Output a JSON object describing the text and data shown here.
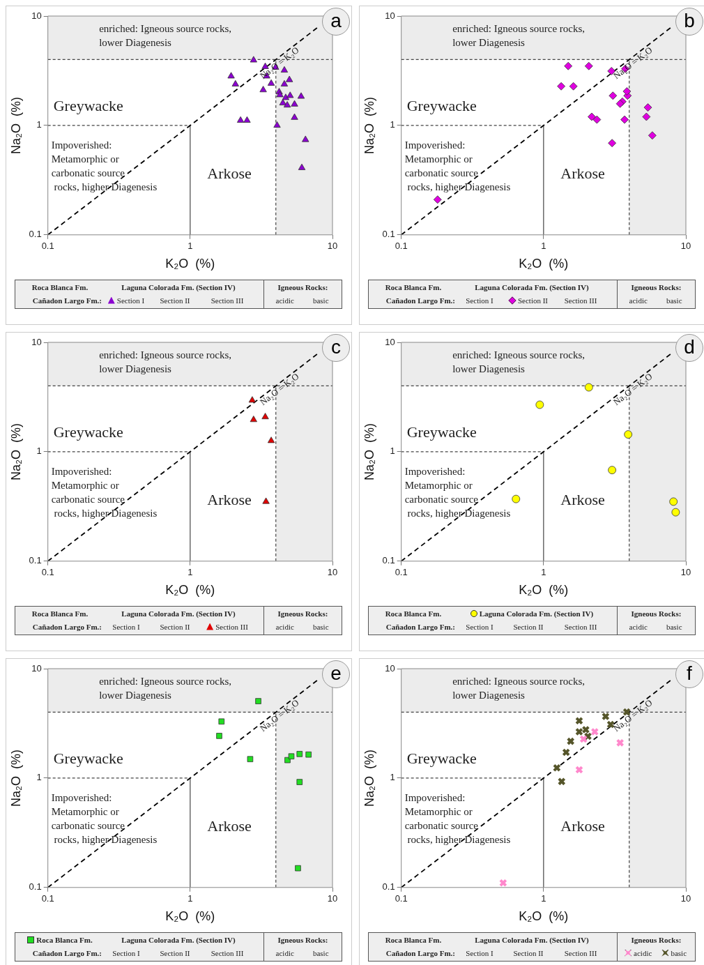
{
  "chart_data": [
    {
      "type": "scatter",
      "xlabel": "K₂O  (%)",
      "ylabel": "Na₂O  (%)",
      "log": "xy",
      "xlim": [
        0.1,
        10
      ],
      "ylim": [
        0.1,
        10
      ],
      "xticks": [
        0.1,
        1,
        10
      ],
      "yticks": [
        0.1,
        1,
        10
      ],
      "legend": "bottom",
      "bands": [
        {
          "axis": "y",
          "from": 4,
          "to": 10,
          "label": "enriched: Igneous source rocks,\nlower Diagenesis",
          "color": "#ececec"
        },
        {
          "axis": "x",
          "from": 4,
          "to": 10,
          "color": "#ececec"
        }
      ],
      "ref_lines": [
        {
          "axis": "x",
          "value": 1
        },
        {
          "axis": "y",
          "value": 1,
          "line_style": "dashed"
        },
        {
          "axis": "x",
          "value": 4,
          "line_style": "dashed"
        },
        {
          "axis": "y",
          "value": 4,
          "line_style": "dashed"
        }
      ],
      "annotations": [
        "a",
        "Greywacke",
        "Impoverished:\nMetamorphic or\ncarbonatic source\n rocks, higher Diagenesis",
        "Arkose",
        "Roca Blanca Fm.",
        "Laguna Colorada Fm. (Section IV)",
        "Igneous Rocks:",
        "Cañadon Largo Fm.:",
        "Section II",
        "Section III",
        "acidic",
        "basic"
      ],
      "series": [
        {
          "name": "Section I",
          "marker": "triangle",
          "color": "#8b00d0",
          "x": [
            1.94,
            2.08,
            2.79,
            3.37,
            3.98,
            4.59,
            3.45,
            3.71,
            3.26,
            4.22,
            4.59,
            4.98,
            4.27,
            4.69,
            4.48,
            5.04,
            6.02,
            5.41,
            4.81,
            5.41,
            2.26,
            2.51,
            4.08,
            6.46,
            6.09
          ],
          "values": [
            2.82,
            2.38,
            3.95,
            3.44,
            3.39,
            3.19,
            2.82,
            2.42,
            2.11,
            2.02,
            2.38,
            2.61,
            1.9,
            1.79,
            1.6,
            1.87,
            1.84,
            1.56,
            1.53,
            1.18,
            1.11,
            1.11,
            1.0,
            0.74,
            0.41
          ]
        },
        {
          "name": "Na₂O = K₂O",
          "type": "line",
          "marker": "none",
          "line_style": "dashed",
          "color": "#000000",
          "x": [
            0.1,
            8
          ],
          "values": [
            0.1,
            8
          ]
        }
      ]
    },
    {
      "type": "scatter",
      "xlabel": "K₂O  (%)",
      "ylabel": "Na₂O  (%)",
      "log": "xy",
      "xlim": [
        0.1,
        10
      ],
      "ylim": [
        0.1,
        10
      ],
      "xticks": [
        0.1,
        1,
        10
      ],
      "yticks": [
        0.1,
        1,
        10
      ],
      "legend": "bottom",
      "bands": [
        {
          "axis": "y",
          "from": 4,
          "to": 10,
          "label": "enriched: Igneous source rocks,\nlower Diagenesis",
          "color": "#ececec"
        },
        {
          "axis": "x",
          "from": 4,
          "to": 10,
          "color": "#ececec"
        }
      ],
      "ref_lines": [
        {
          "axis": "x",
          "value": 1
        },
        {
          "axis": "y",
          "value": 1,
          "line_style": "dashed"
        },
        {
          "axis": "x",
          "value": 4,
          "line_style": "dashed"
        },
        {
          "axis": "y",
          "value": 4,
          "line_style": "dashed"
        }
      ],
      "annotations": [
        "b",
        "Greywacke",
        "Impoverished:\nMetamorphic or\ncarbonatic source\n rocks, higher Diagenesis",
        "Arkose",
        "Roca Blanca Fm.",
        "Laguna Colorada Fm. (Section IV)",
        "Igneous Rocks:",
        "Cañadon Largo Fm.:",
        "Section I",
        "Section III",
        "acidic",
        "basic"
      ],
      "series": [
        {
          "name": "Section II",
          "marker": "diamond",
          "color": "#e000e0",
          "x": [
            1.49,
            1.33,
            1.62,
            2.08,
            3.0,
            3.75,
            3.89,
            3.85,
            3.07,
            3.58,
            3.45,
            2.18,
            2.37,
            3.71,
            3.03,
            5.41,
            5.28,
            5.81,
            0.18
          ],
          "values": [
            3.49,
            2.28,
            2.28,
            3.49,
            3.14,
            3.29,
            1.87,
            2.05,
            1.87,
            1.65,
            1.58,
            1.2,
            1.13,
            1.13,
            0.69,
            1.46,
            1.2,
            0.81,
            0.21
          ]
        },
        {
          "name": "Na₂O = K₂O",
          "type": "line",
          "marker": "none",
          "line_style": "dashed",
          "color": "#000000",
          "x": [
            0.1,
            8
          ],
          "values": [
            0.1,
            8
          ]
        }
      ]
    },
    {
      "type": "scatter",
      "xlabel": "K₂O  (%)",
      "ylabel": "Na₂O  (%)",
      "log": "xy",
      "xlim": [
        0.1,
        10
      ],
      "ylim": [
        0.1,
        10
      ],
      "xticks": [
        0.1,
        1,
        10
      ],
      "yticks": [
        0.1,
        1,
        10
      ],
      "legend": "bottom",
      "bands": [
        {
          "axis": "y",
          "from": 4,
          "to": 10,
          "label": "enriched: Igneous source rocks,\nlower Diagenesis",
          "color": "#ececec"
        },
        {
          "axis": "x",
          "from": 4,
          "to": 10,
          "color": "#ececec"
        }
      ],
      "ref_lines": [
        {
          "axis": "x",
          "value": 1
        },
        {
          "axis": "y",
          "value": 1,
          "line_style": "dashed"
        },
        {
          "axis": "x",
          "value": 4,
          "line_style": "dashed"
        },
        {
          "axis": "y",
          "value": 4,
          "line_style": "dashed"
        }
      ],
      "annotations": [
        "c",
        "Greywacke",
        "Impoverished:\nMetamorphic or\ncarbonatic source\n rocks, higher Diagenesis",
        "Arkose",
        "Roca Blanca Fm.",
        "Laguna Colorada Fm. (Section IV)",
        "Igneous Rocks:",
        "Cañadon Largo Fm.:",
        "Section I",
        "Section II",
        "acidic",
        "basic"
      ],
      "series": [
        {
          "name": "Section III",
          "marker": "triangle",
          "color": "#e00000",
          "x": [
            2.73,
            2.79,
            3.37,
            3.71,
            3.41
          ],
          "values": [
            2.95,
            1.96,
            2.08,
            1.26,
            0.35
          ]
        },
        {
          "name": "Na₂O = K₂O",
          "type": "line",
          "marker": "none",
          "line_style": "dashed",
          "color": "#000000",
          "x": [
            0.1,
            8
          ],
          "values": [
            0.1,
            8
          ]
        }
      ]
    },
    {
      "type": "scatter",
      "xlabel": "K₂O  (%)",
      "ylabel": "Na₂O  (%)",
      "log": "xy",
      "xlim": [
        0.1,
        10
      ],
      "ylim": [
        0.1,
        10
      ],
      "xticks": [
        0.1,
        1,
        10
      ],
      "yticks": [
        0.1,
        1,
        10
      ],
      "legend": "bottom",
      "bands": [
        {
          "axis": "y",
          "from": 4,
          "to": 10,
          "label": "enriched: Igneous source rocks,\nlower Diagenesis",
          "color": "#ececec"
        },
        {
          "axis": "x",
          "from": 4,
          "to": 10,
          "color": "#ececec"
        }
      ],
      "ref_lines": [
        {
          "axis": "x",
          "value": 1
        },
        {
          "axis": "y",
          "value": 1,
          "line_style": "dashed"
        },
        {
          "axis": "x",
          "value": 4,
          "line_style": "dashed"
        },
        {
          "axis": "y",
          "value": 4,
          "line_style": "dashed"
        }
      ],
      "annotations": [
        "d",
        "Greywacke",
        "Impoverished:\nMetamorphic or\ncarbonatic source\n rocks, higher Diagenesis",
        "Arkose",
        "Roca Blanca Fm.",
        "Igneous Rocks:",
        "Cañadon Largo Fm.:",
        "Section I",
        "Section II",
        "Section III",
        "acidic",
        "basic"
      ],
      "series": [
        {
          "name": "Laguna Colorada Fm. (Section IV)",
          "marker": "circle",
          "color": "#ffff00",
          "x": [
            0.94,
            2.08,
            3.93,
            3.03,
            0.64,
            8.18,
            8.48
          ],
          "values": [
            2.69,
            3.88,
            1.44,
            0.68,
            0.37,
            0.35,
            0.28
          ]
        },
        {
          "name": "Na₂O = K₂O",
          "type": "line",
          "marker": "none",
          "line_style": "dashed",
          "color": "#000000",
          "x": [
            0.1,
            8
          ],
          "values": [
            0.1,
            8
          ]
        }
      ]
    },
    {
      "type": "scatter",
      "xlabel": "K₂O  (%)",
      "ylabel": "Na₂O  (%)",
      "log": "xy",
      "xlim": [
        0.1,
        10
      ],
      "ylim": [
        0.1,
        10
      ],
      "xticks": [
        0.1,
        1,
        10
      ],
      "yticks": [
        0.1,
        1,
        10
      ],
      "legend": "bottom",
      "bands": [
        {
          "axis": "y",
          "from": 4,
          "to": 10,
          "label": "enriched: Igneous source rocks,\nlower Diagenesis",
          "color": "#ececec"
        },
        {
          "axis": "x",
          "from": 4,
          "to": 10,
          "color": "#ececec"
        }
      ],
      "ref_lines": [
        {
          "axis": "x",
          "value": 1
        },
        {
          "axis": "y",
          "value": 1,
          "line_style": "dashed"
        },
        {
          "axis": "x",
          "value": 4,
          "line_style": "dashed"
        },
        {
          "axis": "y",
          "value": 4,
          "line_style": "dashed"
        }
      ],
      "annotations": [
        "e",
        "Greywacke",
        "Impoverished:\nMetamorphic or\ncarbonatic source\n rocks, higher Diagenesis",
        "Arkose",
        "Laguna Colorada Fm. (Section IV)",
        "Igneous Rocks:",
        "Cañadon Largo Fm.:",
        "Section I",
        "Section II",
        "Section III",
        "acidic",
        "basic"
      ],
      "series": [
        {
          "name": "Roca Blanca Fm.",
          "marker": "square",
          "color": "#22dd22",
          "x": [
            3.01,
            1.66,
            1.6,
            2.64,
            4.83,
            5.14,
            5.87,
            6.79,
            5.87,
            5.72
          ],
          "values": [
            5.05,
            3.29,
            2.43,
            1.49,
            1.46,
            1.58,
            1.66,
            1.64,
            0.92,
            0.15
          ]
        },
        {
          "name": "Na₂O = K₂O",
          "type": "line",
          "marker": "none",
          "line_style": "dashed",
          "color": "#000000",
          "x": [
            0.1,
            8
          ],
          "values": [
            0.1,
            8
          ]
        }
      ]
    },
    {
      "type": "scatter",
      "xlabel": "K₂O  (%)",
      "ylabel": "Na₂O  (%)",
      "log": "xy",
      "xlim": [
        0.1,
        10
      ],
      "ylim": [
        0.1,
        10
      ],
      "xticks": [
        0.1,
        1,
        10
      ],
      "yticks": [
        0.1,
        1,
        10
      ],
      "legend": "bottom",
      "bands": [
        {
          "axis": "y",
          "from": 4,
          "to": 10,
          "label": "enriched: Igneous source rocks,\nlower Diagenesis",
          "color": "#ececec"
        },
        {
          "axis": "x",
          "from": 4,
          "to": 10,
          "color": "#ececec"
        }
      ],
      "ref_lines": [
        {
          "axis": "x",
          "value": 1
        },
        {
          "axis": "y",
          "value": 1,
          "line_style": "dashed"
        },
        {
          "axis": "x",
          "value": 4,
          "line_style": "dashed"
        },
        {
          "axis": "y",
          "value": 4,
          "line_style": "dashed"
        }
      ],
      "annotations": [
        "f",
        "Greywacke",
        "Impoverished:\nMetamorphic or\ncarbonatic source\n rocks, higher Diagenesis",
        "Arkose",
        "Roca Blanca Fm.",
        "Laguna Colorada Fm. (Section IV)",
        "Igneous Rocks:",
        "Cañadon Largo Fm.:",
        "Section I",
        "Section II",
        "Section III"
      ],
      "series": [
        {
          "name": "acidic",
          "marker": "cross",
          "color": "#ff88cc",
          "x": [
            2.29,
            1.91,
            3.45,
            1.78,
            0.52
          ],
          "values": [
            2.65,
            2.27,
            2.1,
            1.19,
            0.11
          ]
        },
        {
          "name": "basic",
          "marker": "cross",
          "color": "#55552a",
          "x": [
            3.84,
            2.73,
            2.96,
            1.78,
            1.78,
            1.98,
            2.05,
            1.55,
            1.44,
            1.24,
            1.34
          ],
          "values": [
            4.02,
            3.66,
            3.09,
            3.34,
            2.65,
            2.77,
            2.41,
            2.17,
            1.72,
            1.24,
            0.93
          ]
        },
        {
          "name": "Na₂O = K₂O",
          "type": "line",
          "marker": "none",
          "line_style": "dashed",
          "color": "#000000",
          "x": [
            0.1,
            8
          ],
          "values": [
            0.1,
            8
          ]
        }
      ]
    }
  ]
}
